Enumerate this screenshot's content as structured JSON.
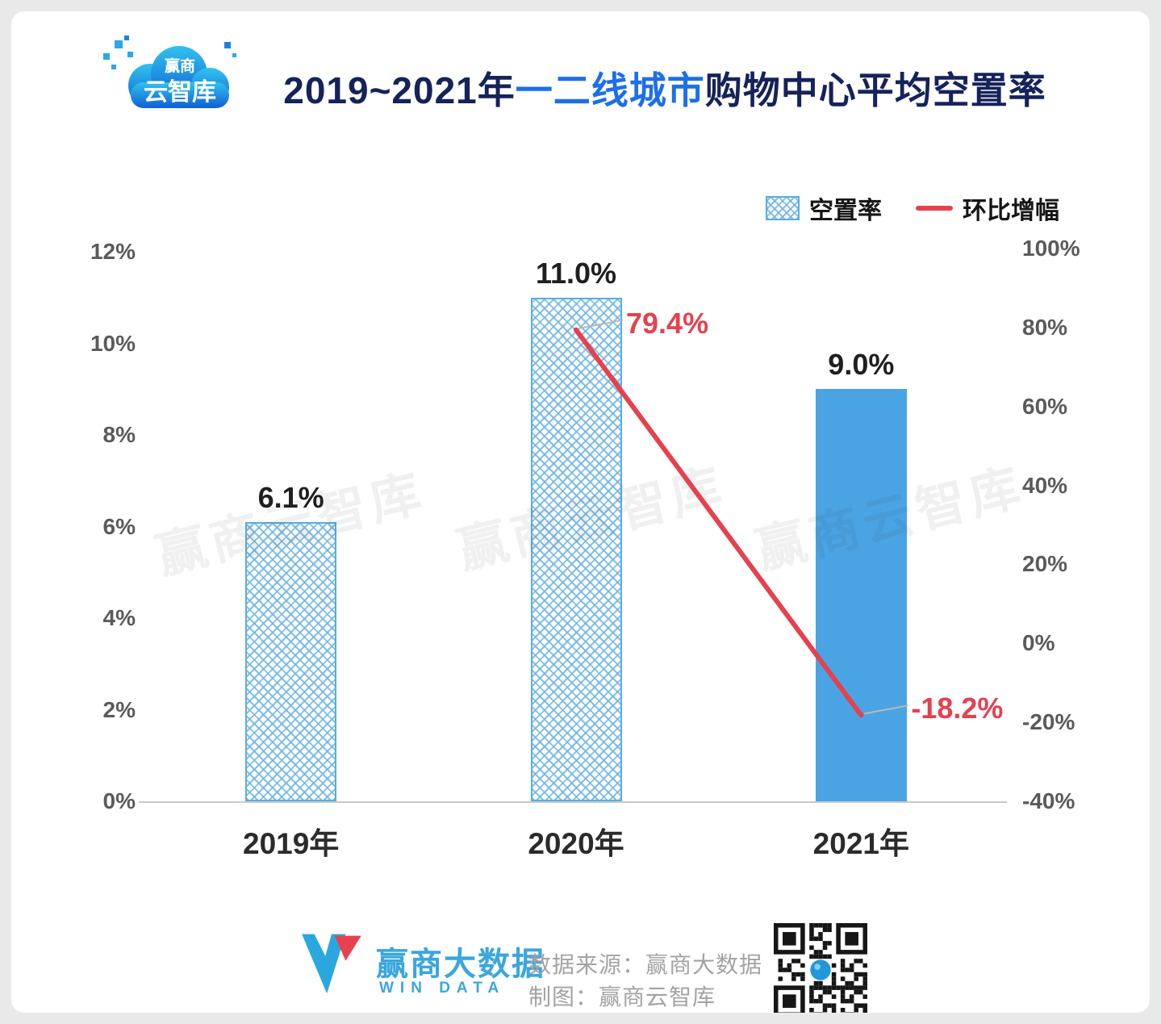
{
  "header": {
    "logo": {
      "line1": "赢商",
      "line2": "云智库"
    },
    "title_part1": "2019~2021年",
    "title_part2": "一二线城市",
    "title_part3": "购物中心平均空置率"
  },
  "legend": {
    "bar_label": "空置率",
    "line_label": "环比增幅"
  },
  "chart_data": {
    "type": "bar",
    "title": "2019~2021年一二线城市购物中心平均空置率",
    "categories": [
      "2019年",
      "2020年",
      "2021年"
    ],
    "series": [
      {
        "name": "空置率",
        "type": "bar",
        "axis": "left",
        "values": [
          6.1,
          11.0,
          9.0
        ],
        "data_labels": [
          "6.1%",
          "11.0%",
          "9.0%"
        ]
      },
      {
        "name": "环比增幅",
        "type": "line",
        "axis": "right",
        "values": [
          null,
          79.4,
          -18.2
        ],
        "data_labels": [
          null,
          "79.4%",
          "-18.2%"
        ],
        "color": "#e5414e"
      }
    ],
    "bar_styles": [
      "hatch",
      "hatch",
      "solid"
    ],
    "left_axis": {
      "min": 0,
      "max": 12,
      "tick_labels": [
        "0%",
        "2%",
        "4%",
        "6%",
        "8%",
        "10%",
        "12%"
      ]
    },
    "right_axis": {
      "min": -40,
      "max": 100,
      "tick_labels": [
        "-40%",
        "-20%",
        "0%",
        "20%",
        "40%",
        "60%",
        "80%",
        "100%"
      ]
    },
    "grid": false,
    "legend_position": "top-right"
  },
  "watermark": {
    "text": "赢商云智库"
  },
  "footer": {
    "brand": "赢商大数据",
    "brand_sub": "WIN DATA",
    "source_label": "数据来源：赢商大数据",
    "credit_label": "制图：赢商云智库"
  },
  "colors": {
    "accent_blue": "#1d6fe8",
    "title_navy": "#16235a",
    "bar_solid": "#4aa4e3",
    "bar_hatch_line": "#6eb4e4",
    "line_red": "#e5414e",
    "page_bg": "#e9e9e9"
  }
}
